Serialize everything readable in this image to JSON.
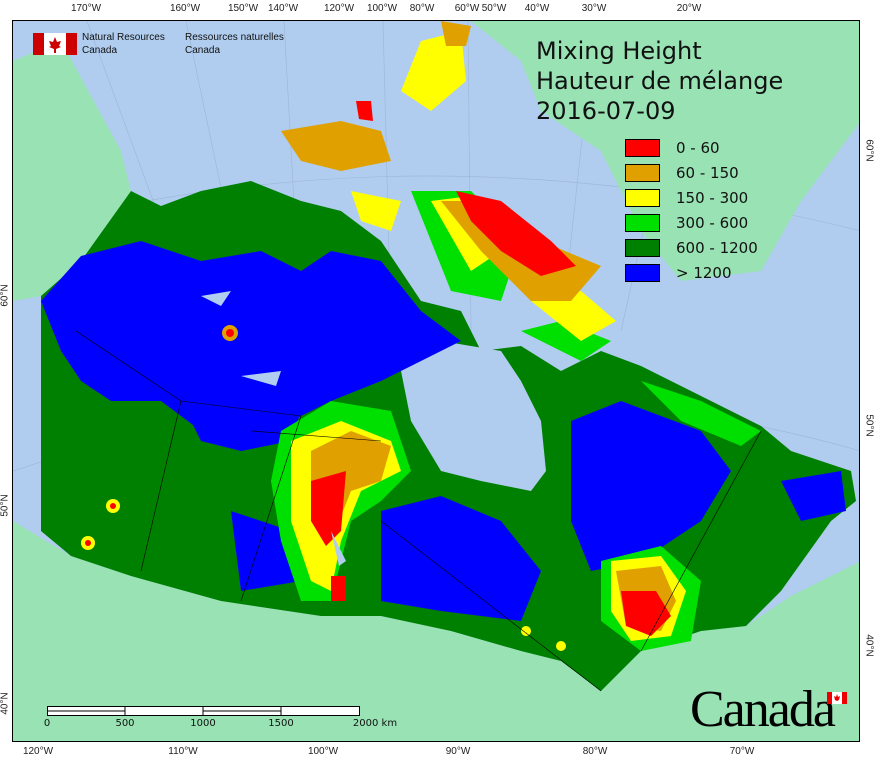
{
  "title": {
    "en": "Mixing Height",
    "fr": "Hauteur de mélange",
    "date": "2016-07-09"
  },
  "organization": {
    "en_line1": "Natural Resources",
    "en_line2": "Canada",
    "fr_line1": "Ressources naturelles",
    "fr_line2": "Canada"
  },
  "wordmark": "Canada",
  "legend": [
    {
      "label": "0 - 60",
      "color": "#ff0000"
    },
    {
      "label": "60 - 150",
      "color": "#e0a000"
    },
    {
      "label": "150 - 300",
      "color": "#ffff00"
    },
    {
      "label": "300 - 600",
      "color": "#00e000"
    },
    {
      "label": "600 - 1200",
      "color": "#008000"
    },
    {
      "label": "> 1200",
      "color": "#0000ff"
    }
  ],
  "graticule": {
    "top": [
      "170°W",
      "160°W",
      "150°W",
      "140°W",
      "120°W",
      "100°W",
      "80°W",
      "60°W",
      "50°W",
      "40°W",
      "30°W",
      "20°W"
    ],
    "bottom": [
      "120°W",
      "110°W",
      "100°W",
      "90°W",
      "80°W",
      "70°W"
    ],
    "left": [
      "60°N",
      "50°N",
      "40°N"
    ],
    "right": [
      "60°N",
      "50°N",
      "40°N"
    ]
  },
  "scale": {
    "labels": [
      "0",
      "500",
      "1000",
      "1500",
      "2000 km"
    ]
  },
  "colors": {
    "ocean": "#b0cdef",
    "land": "#98e2b4"
  }
}
